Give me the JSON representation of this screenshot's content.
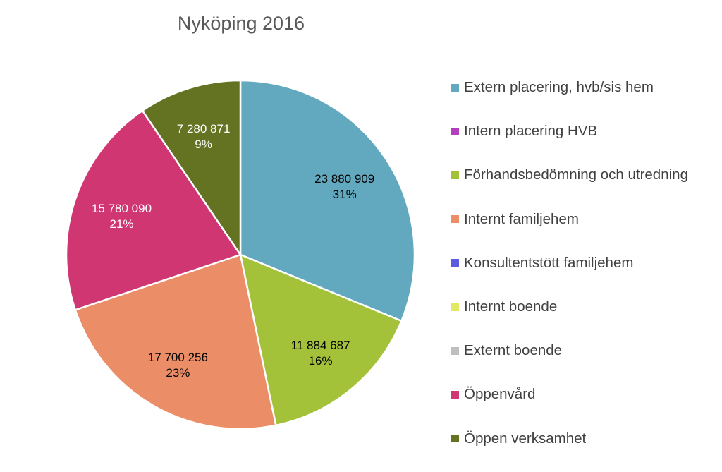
{
  "chart_data": {
    "type": "pie",
    "title": "Nyköping 2016",
    "legend_position": "right",
    "slices": [
      {
        "name": "Extern placering, hvb/sis hem",
        "value": 23880909,
        "value_label": "23 880 909",
        "percent_label": "31%",
        "color": "#62A9BF",
        "label_color": "#000000"
      },
      {
        "name": "Intern placering HVB",
        "value": 0,
        "value_label": "",
        "percent_label": "",
        "color": "#B33FBF",
        "label_color": "#000000"
      },
      {
        "name": "Förhandsbedömning och utredning",
        "value": 11884687,
        "value_label": "11 884 687",
        "percent_label": "16%",
        "color": "#A3C23A",
        "label_color": "#000000"
      },
      {
        "name": "Internt familjehem",
        "value": 17700256,
        "value_label": "17 700 256",
        "percent_label": "23%",
        "color": "#EB8E67",
        "label_color": "#000000"
      },
      {
        "name": "Konsultentstött familjehem",
        "value": 0,
        "value_label": "",
        "percent_label": "",
        "color": "#5B5BE0",
        "label_color": "#000000"
      },
      {
        "name": "Internt boende",
        "value": 0,
        "value_label": "",
        "percent_label": "",
        "color": "#E2E866",
        "label_color": "#000000"
      },
      {
        "name": "Externt boende",
        "value": 0,
        "value_label": "",
        "percent_label": "",
        "color": "#BFBFBF",
        "label_color": "#000000"
      },
      {
        "name": "Öppenvård",
        "value": 15780090,
        "value_label": "15 780 090",
        "percent_label": "21%",
        "color": "#D03672",
        "label_color": "#FFFFFF"
      },
      {
        "name": "Öppen verksamhet",
        "value": 7280871,
        "value_label": "7 280 871",
        "percent_label": "9%",
        "color": "#637322",
        "label_color": "#FFFFFF"
      }
    ]
  }
}
